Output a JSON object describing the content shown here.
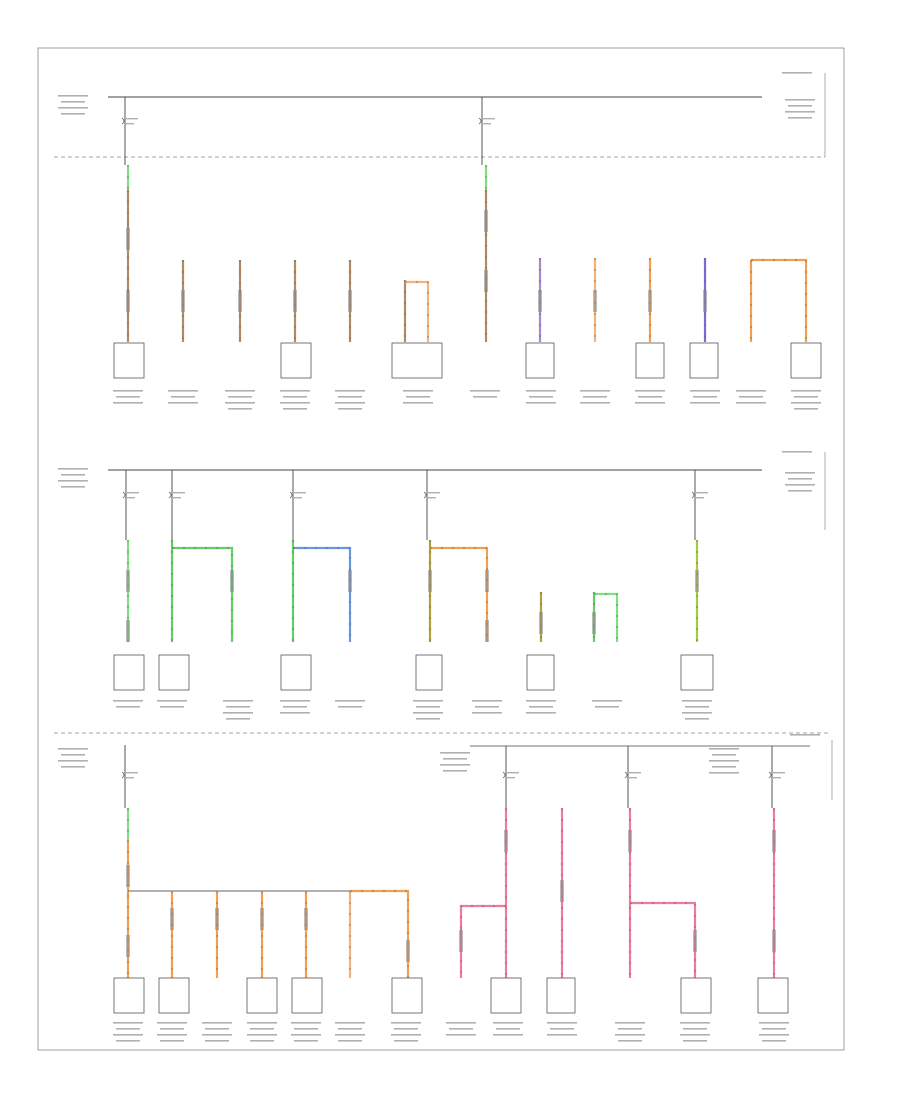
{
  "colors": {
    "black": "#3a3a3a",
    "tan": "#b08c66",
    "lightgreen": "#7fe07f",
    "green": "#66cc66",
    "blue": "#6699dd",
    "orange": "#f0a050",
    "lightorange": "#f4b37a",
    "violet": "#a48ad0",
    "purple": "#7a6ad8",
    "pink": "#f07a9a",
    "olive": "#b0a040",
    "yellowgreen": "#a8cc40"
  },
  "labels": {
    "page_id": "",
    "section_tag": ""
  }
}
